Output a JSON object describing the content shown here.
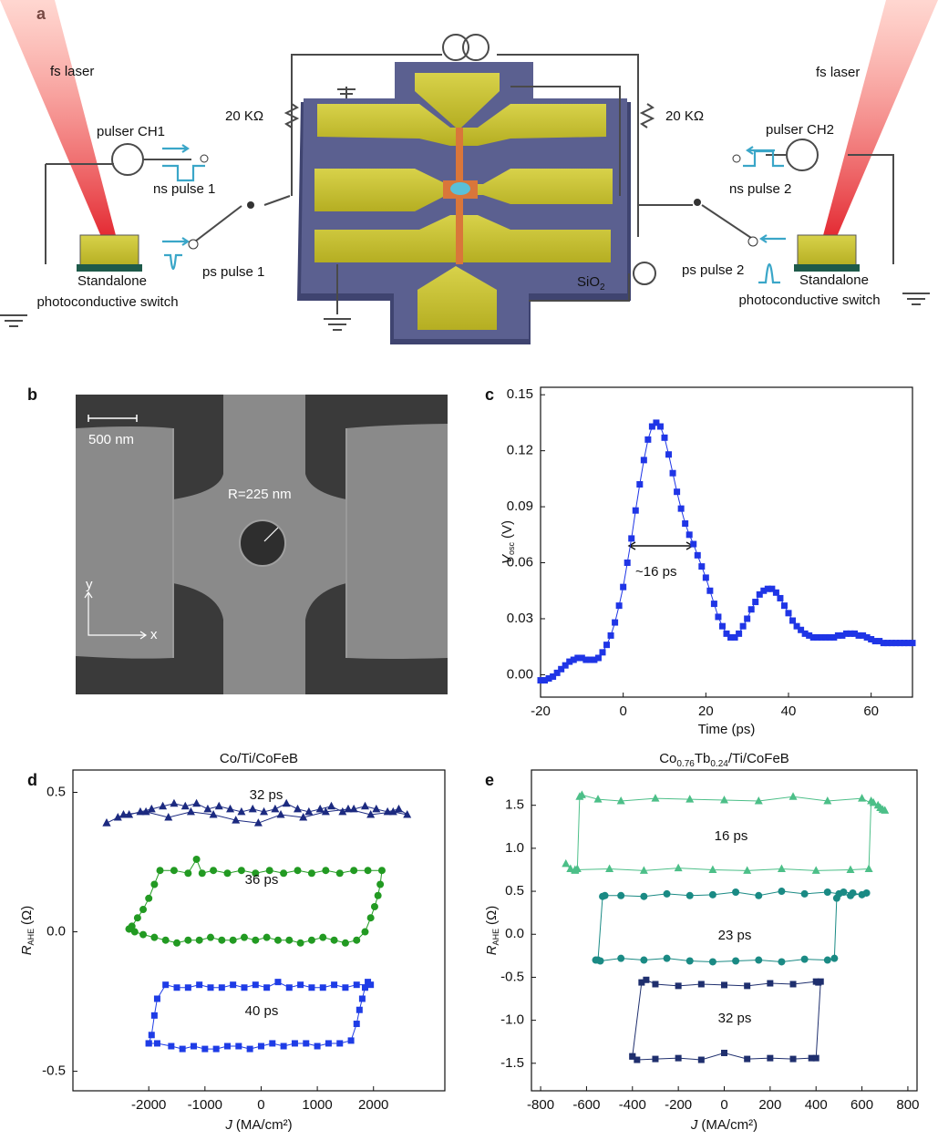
{
  "panel_labels": [
    "a",
    "b",
    "c",
    "d",
    "e"
  ],
  "diagram": {
    "left": {
      "laser": "fs laser",
      "pulser": "pulser CH1",
      "ns_pulse": "ns pulse 1",
      "ps_pulse": "ps pulse 1",
      "switch": [
        "Standalone",
        "photoconductive switch"
      ]
    },
    "right": {
      "laser": "fs laser",
      "pulser": "pulser CH2",
      "ns_pulse": "ns pulse 2",
      "ps_pulse": "ps pulse 2",
      "switch": [
        "Standalone",
        "photoconductive switch"
      ]
    },
    "resistors": [
      "20 KΩ",
      "20 KΩ"
    ],
    "substrate": [
      "SiO",
      "2"
    ]
  },
  "micrograph": {
    "scale_bar": "500 nm",
    "radius": "R=225 nm",
    "axes": [
      "y",
      "x"
    ]
  },
  "chart_data": [
    {
      "type": "line",
      "marker": "square",
      "color": "#1f35e6",
      "xlabel": "Time (ps)",
      "ylabel": {
        "symbol": "V",
        "subscript": "osc",
        "unit": "(V)"
      },
      "annotation": "~16 ps",
      "x": [
        -20,
        -19,
        -18,
        -17,
        -16,
        -15,
        -14,
        -13,
        -12,
        -11,
        -10,
        -9,
        -8,
        -7,
        -6,
        -5,
        -4,
        -3,
        -2,
        -1,
        0,
        1,
        2,
        3,
        4,
        5,
        6,
        7,
        8,
        9,
        10,
        11,
        12,
        13,
        14,
        15,
        16,
        17,
        18,
        19,
        20,
        21,
        22,
        23,
        24,
        25,
        26,
        27,
        28,
        29,
        30,
        31,
        32,
        33,
        34,
        35,
        36,
        37,
        38,
        39,
        40,
        41,
        42,
        43,
        44,
        45,
        46,
        47,
        48,
        49,
        50,
        51,
        52,
        53,
        54,
        55,
        56,
        57,
        58,
        59,
        60,
        61,
        62,
        63,
        64,
        65,
        66,
        67,
        68,
        69,
        70
      ],
      "values": [
        -0.003,
        -0.003,
        -0.002,
        -0.001,
        0.001,
        0.003,
        0.005,
        0.007,
        0.008,
        0.009,
        0.009,
        0.008,
        0.008,
        0.008,
        0.009,
        0.012,
        0.016,
        0.021,
        0.028,
        0.037,
        0.047,
        0.06,
        0.073,
        0.088,
        0.102,
        0.115,
        0.126,
        0.133,
        0.135,
        0.133,
        0.127,
        0.118,
        0.108,
        0.098,
        0.089,
        0.081,
        0.075,
        0.07,
        0.064,
        0.058,
        0.052,
        0.045,
        0.038,
        0.031,
        0.026,
        0.022,
        0.02,
        0.02,
        0.022,
        0.026,
        0.03,
        0.035,
        0.039,
        0.043,
        0.045,
        0.046,
        0.046,
        0.044,
        0.041,
        0.037,
        0.033,
        0.029,
        0.026,
        0.024,
        0.022,
        0.021,
        0.02,
        0.02,
        0.02,
        0.02,
        0.02,
        0.02,
        0.021,
        0.021,
        0.022,
        0.022,
        0.022,
        0.021,
        0.021,
        0.02,
        0.019,
        0.018,
        0.018,
        0.017,
        0.017,
        0.017,
        0.017,
        0.017,
        0.017,
        0.017,
        0.017
      ],
      "xlim": [
        -20,
        70
      ],
      "xticks": [
        -20,
        0,
        20,
        40,
        60
      ],
      "ylim": [
        -0.012,
        0.154
      ],
      "yticks": [
        {
          "value": 0,
          "label": "0.00"
        },
        0.03,
        0.06,
        0.09,
        0.12,
        0.15
      ]
    },
    {
      "type": "line",
      "title": "Co/Ti/CoFeB",
      "xlabel": {
        "symbol": "J",
        "unit": "(MA/cm²)"
      },
      "ylabel": {
        "symbol": "R",
        "subscript": "AHE",
        "unit": "(Ω)"
      },
      "xlim": [
        -3350,
        3270
      ],
      "xticks": [
        -2000,
        -1000,
        0,
        1000,
        2000
      ],
      "ylim": [
        -0.57,
        0.58
      ],
      "yticks": [
        -0.5,
        {
          "value": 0,
          "label": "0.0"
        },
        0.5
      ],
      "series": [
        {
          "name": "32 ps",
          "color": "#1c2a80",
          "marker": "triangle",
          "x": [
            -2750,
            -2550,
            -2350,
            -2150,
            -1950,
            -1750,
            -1550,
            -1350,
            -1150,
            -950,
            -750,
            -550,
            -350,
            -150,
            50,
            250,
            450,
            650,
            850,
            1050,
            1250,
            1450,
            1650,
            1850,
            2050,
            2250,
            2450,
            2600,
            2350,
            1950,
            1550,
            1150,
            750,
            350,
            -50,
            -450,
            -850,
            -1250,
            -1650,
            -2050,
            -2450,
            -2750
          ],
          "values": [
            0.39,
            0.41,
            0.42,
            0.43,
            0.44,
            0.45,
            0.46,
            0.45,
            0.46,
            0.44,
            0.45,
            0.44,
            0.43,
            0.44,
            0.43,
            0.44,
            0.46,
            0.44,
            0.43,
            0.44,
            0.45,
            0.43,
            0.44,
            0.45,
            0.44,
            0.43,
            0.44,
            0.42,
            0.43,
            0.42,
            0.44,
            0.43,
            0.41,
            0.42,
            0.39,
            0.4,
            0.42,
            0.43,
            0.41,
            0.43,
            0.42,
            0.39
          ]
        },
        {
          "name": "36 ps",
          "color": "#229a22",
          "marker": "circle",
          "x": [
            -2350,
            -2250,
            -2100,
            -1900,
            -1700,
            -1500,
            -1300,
            -1100,
            -900,
            -700,
            -500,
            -300,
            -100,
            100,
            300,
            500,
            700,
            900,
            1100,
            1300,
            1500,
            1700,
            1850,
            1950,
            2020,
            2080,
            2120,
            2150,
            1900,
            1650,
            1400,
            1150,
            900,
            650,
            400,
            150,
            -100,
            -350,
            -600,
            -850,
            -1050,
            -1150,
            -1300,
            -1550,
            -1800,
            -1900,
            -2000,
            -2100,
            -2200,
            -2300,
            -2350
          ],
          "values": [
            0.01,
            0.0,
            -0.01,
            -0.02,
            -0.03,
            -0.04,
            -0.03,
            -0.03,
            -0.02,
            -0.03,
            -0.03,
            -0.02,
            -0.03,
            -0.02,
            -0.03,
            -0.03,
            -0.04,
            -0.03,
            -0.02,
            -0.03,
            -0.04,
            -0.03,
            0.0,
            0.05,
            0.09,
            0.13,
            0.17,
            0.22,
            0.22,
            0.22,
            0.21,
            0.22,
            0.21,
            0.22,
            0.21,
            0.22,
            0.21,
            0.22,
            0.21,
            0.22,
            0.21,
            0.26,
            0.21,
            0.22,
            0.22,
            0.17,
            0.12,
            0.08,
            0.05,
            0.02,
            0.01
          ]
        },
        {
          "name": "40 ps",
          "color": "#1e3ce6",
          "marker": "square",
          "x": [
            -2000,
            -1850,
            -1600,
            -1400,
            -1200,
            -1000,
            -800,
            -600,
            -400,
            -200,
            0,
            200,
            400,
            600,
            800,
            1000,
            1200,
            1400,
            1600,
            1700,
            1750,
            1800,
            1850,
            1900,
            1950,
            1700,
            1500,
            1300,
            1100,
            900,
            700,
            500,
            300,
            100,
            -100,
            -300,
            -500,
            -700,
            -900,
            -1100,
            -1300,
            -1500,
            -1700,
            -1850,
            -1900,
            -1950,
            -2000
          ],
          "values": [
            -0.4,
            -0.4,
            -0.41,
            -0.42,
            -0.41,
            -0.42,
            -0.42,
            -0.41,
            -0.41,
            -0.42,
            -0.41,
            -0.4,
            -0.41,
            -0.4,
            -0.4,
            -0.41,
            -0.4,
            -0.4,
            -0.39,
            -0.33,
            -0.28,
            -0.24,
            -0.2,
            -0.18,
            -0.19,
            -0.19,
            -0.2,
            -0.19,
            -0.2,
            -0.2,
            -0.19,
            -0.2,
            -0.18,
            -0.2,
            -0.19,
            -0.2,
            -0.19,
            -0.2,
            -0.2,
            -0.19,
            -0.2,
            -0.2,
            -0.19,
            -0.24,
            -0.3,
            -0.37,
            -0.4
          ]
        }
      ]
    },
    {
      "type": "line",
      "title": [
        "Co",
        "0.76",
        "Tb",
        "0.24",
        "/Ti/CoFeB"
      ],
      "xlabel": {
        "symbol": "J",
        "unit": "(MA/cm²)"
      },
      "ylabel": {
        "symbol": "R",
        "subscript": "AHE",
        "unit": "(Ω)"
      },
      "xlim": [
        -840,
        840
      ],
      "xticks": [
        -800,
        -600,
        -400,
        -200,
        0,
        200,
        400,
        600,
        800
      ],
      "ylim": [
        -1.82,
        1.91
      ],
      "yticks": [
        -1.5,
        {
          "value": -1,
          "label": "-1.0"
        },
        -0.5,
        {
          "value": 0,
          "label": "0.0"
        },
        0.5,
        {
          "value": 1,
          "label": "1.0"
        },
        1.5
      ],
      "series": [
        {
          "name": "16 ps",
          "color": "#4cbf88",
          "marker": "triangle",
          "x": [
            -690,
            -670,
            -650,
            -500,
            -350,
            -200,
            -50,
            100,
            250,
            400,
            550,
            630,
            640,
            650,
            670,
            690,
            700,
            680,
            600,
            450,
            300,
            150,
            0,
            -150,
            -300,
            -450,
            -550,
            -620,
            -630,
            -640,
            -650
          ],
          "values": [
            0.82,
            0.76,
            0.75,
            0.76,
            0.74,
            0.77,
            0.75,
            0.74,
            0.76,
            0.74,
            0.75,
            0.76,
            1.55,
            1.53,
            1.5,
            1.45,
            1.44,
            1.47,
            1.58,
            1.55,
            1.6,
            1.55,
            1.56,
            1.57,
            1.58,
            1.55,
            1.57,
            1.62,
            1.6,
            0.76,
            0.74
          ]
        },
        {
          "name": "23 ps",
          "color": "#1a8a84",
          "marker": "circle",
          "x": [
            -560,
            -540,
            -450,
            -350,
            -250,
            -150,
            -50,
            50,
            150,
            250,
            350,
            450,
            480,
            490,
            500,
            520,
            560,
            600,
            620,
            550,
            450,
            350,
            250,
            150,
            50,
            -50,
            -150,
            -250,
            -350,
            -450,
            -520,
            -530,
            -550
          ],
          "values": [
            -0.3,
            -0.31,
            -0.28,
            -0.3,
            -0.28,
            -0.31,
            -0.32,
            -0.31,
            -0.3,
            -0.32,
            -0.29,
            -0.3,
            -0.28,
            0.42,
            0.47,
            0.49,
            0.48,
            0.46,
            0.48,
            0.45,
            0.49,
            0.47,
            0.5,
            0.45,
            0.49,
            0.46,
            0.45,
            0.47,
            0.44,
            0.45,
            0.45,
            0.44,
            -0.3
          ]
        },
        {
          "name": "32 ps",
          "color": "#1f2f6e",
          "marker": "square",
          "x": [
            -400,
            -380,
            -300,
            -200,
            -100,
            0,
            100,
            200,
            300,
            380,
            400,
            420,
            410,
            400,
            300,
            200,
            100,
            0,
            -100,
            -200,
            -300,
            -340,
            -360,
            -400
          ],
          "values": [
            -1.42,
            -1.46,
            -1.45,
            -1.44,
            -1.46,
            -1.38,
            -1.45,
            -1.44,
            -1.45,
            -1.44,
            -1.44,
            -0.55,
            -0.56,
            -0.55,
            -0.58,
            -0.57,
            -0.6,
            -0.59,
            -0.58,
            -0.6,
            -0.58,
            -0.53,
            -0.56,
            -1.42
          ]
        }
      ]
    }
  ]
}
